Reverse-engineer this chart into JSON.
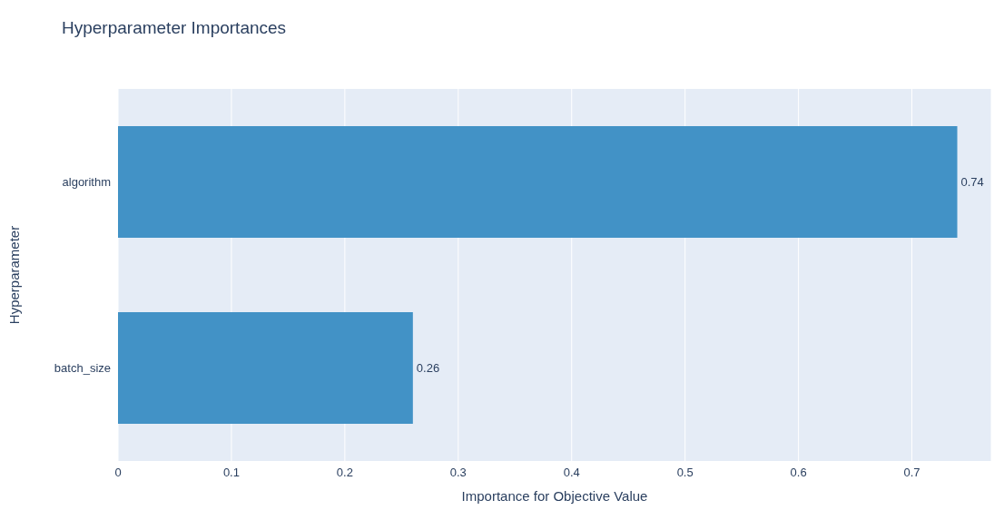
{
  "chart_data": {
    "type": "bar",
    "orientation": "horizontal",
    "title": "Hyperparameter Importances",
    "xlabel": "Importance for Objective Value",
    "ylabel": "Hyperparameter",
    "categories": [
      "algorithm",
      "batch_size"
    ],
    "values": [
      0.74,
      0.26
    ],
    "color": "#4292c6",
    "data_labels": true,
    "xlim": [
      0,
      0.77
    ],
    "xticks": [
      0,
      0.1,
      0.2,
      0.3,
      0.4,
      0.5,
      0.6,
      0.7
    ],
    "grid": "x"
  }
}
